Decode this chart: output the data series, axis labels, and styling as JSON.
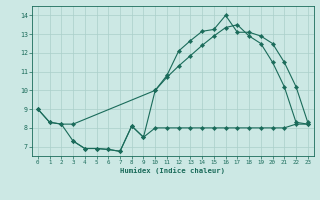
{
  "xlabel": "Humidex (Indice chaleur)",
  "bg_color": "#cce8e4",
  "line_color": "#1a6b5a",
  "grid_color": "#aacfca",
  "xlim": [
    -0.5,
    23.5
  ],
  "ylim": [
    6.5,
    14.5
  ],
  "xticks": [
    0,
    1,
    2,
    3,
    4,
    5,
    6,
    7,
    8,
    9,
    10,
    11,
    12,
    13,
    14,
    15,
    16,
    17,
    18,
    19,
    20,
    21,
    22,
    23
  ],
  "yticks": [
    7,
    8,
    9,
    10,
    11,
    12,
    13,
    14
  ],
  "line1_x": [
    0,
    1,
    2,
    3,
    4,
    5,
    6,
    7,
    8,
    9,
    10,
    11,
    12,
    13,
    14,
    15,
    16,
    17,
    18,
    19,
    20,
    21,
    22,
    23
  ],
  "line1_y": [
    9.0,
    8.3,
    8.2,
    7.3,
    6.9,
    6.9,
    6.85,
    6.75,
    8.1,
    7.5,
    8.0,
    8.0,
    8.0,
    8.0,
    8.0,
    8.0,
    8.0,
    8.0,
    8.0,
    8.0,
    8.0,
    8.0,
    8.2,
    8.2
  ],
  "line2_x": [
    0,
    1,
    2,
    3,
    10,
    11,
    12,
    13,
    14,
    15,
    16,
    17,
    18,
    19,
    20,
    21,
    22,
    23
  ],
  "line2_y": [
    9.0,
    8.3,
    8.2,
    8.2,
    10.0,
    10.7,
    11.3,
    11.85,
    12.4,
    12.9,
    13.35,
    13.5,
    12.9,
    12.5,
    11.5,
    10.2,
    8.3,
    8.2
  ],
  "line3_x": [
    3,
    4,
    5,
    6,
    7,
    8,
    9,
    10,
    11,
    12,
    13,
    14,
    15,
    16,
    17,
    18,
    19,
    20,
    21,
    22,
    23
  ],
  "line3_y": [
    7.3,
    6.9,
    6.9,
    6.85,
    6.75,
    8.1,
    7.5,
    10.0,
    10.8,
    12.1,
    12.65,
    13.15,
    13.25,
    14.0,
    13.1,
    13.1,
    12.9,
    12.5,
    11.5,
    10.2,
    8.3
  ]
}
